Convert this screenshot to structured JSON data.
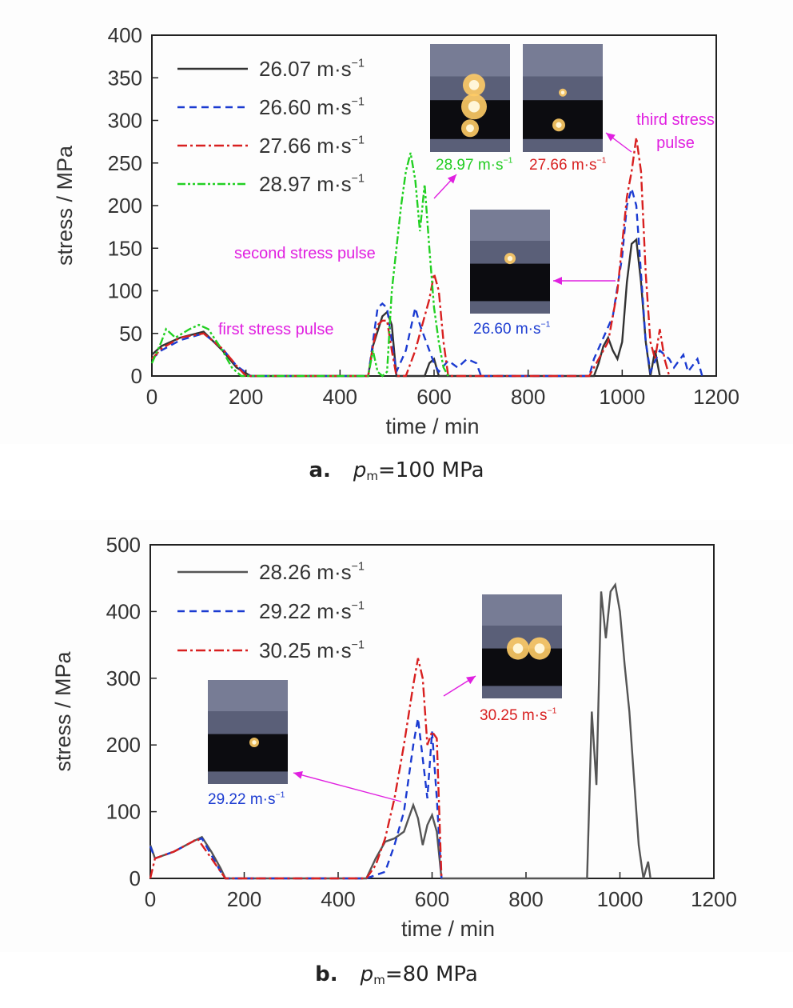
{
  "chart_data": [
    {
      "type": "line",
      "caption_label": "a.",
      "caption_symbol": "p",
      "caption_subscript": "m",
      "caption_value": "=100 MPa",
      "xlabel": "time / min",
      "ylabel": "stress / MPa",
      "xlim": [
        0,
        1200
      ],
      "ylim": [
        0,
        400
      ],
      "xticks": [
        "0",
        "200",
        "400",
        "600",
        "800",
        "1000",
        "1200"
      ],
      "yticks": [
        "0",
        "50",
        "100",
        "150",
        "200",
        "250",
        "300",
        "350",
        "400"
      ],
      "legend_position": "top-left",
      "series": [
        {
          "name": "26.07 m·s",
          "color": "#333333",
          "dash": "solid",
          "points": [
            [
              0,
              25
            ],
            [
              20,
              35
            ],
            [
              60,
              45
            ],
            [
              110,
              52
            ],
            [
              150,
              30
            ],
            [
              180,
              10
            ],
            [
              210,
              0
            ],
            [
              460,
              0
            ],
            [
              470,
              35
            ],
            [
              490,
              70
            ],
            [
              500,
              75
            ],
            [
              510,
              60
            ],
            [
              520,
              0
            ],
            [
              580,
              0
            ],
            [
              590,
              15
            ],
            [
              600,
              20
            ],
            [
              610,
              0
            ],
            [
              940,
              0
            ],
            [
              950,
              15
            ],
            [
              960,
              35
            ],
            [
              970,
              45
            ],
            [
              980,
              30
            ],
            [
              990,
              20
            ],
            [
              1000,
              40
            ],
            [
              1010,
              110
            ],
            [
              1020,
              155
            ],
            [
              1030,
              160
            ],
            [
              1040,
              110
            ],
            [
              1050,
              40
            ],
            [
              1060,
              0
            ],
            [
              1070,
              30
            ],
            [
              1080,
              0
            ]
          ]
        },
        {
          "name": "26.60 m·s",
          "color": "#1b3bd1",
          "dash": "9,6",
          "points": [
            [
              0,
              20
            ],
            [
              20,
              30
            ],
            [
              60,
              42
            ],
            [
              110,
              50
            ],
            [
              150,
              32
            ],
            [
              180,
              12
            ],
            [
              210,
              0
            ],
            [
              460,
              0
            ],
            [
              470,
              40
            ],
            [
              480,
              80
            ],
            [
              490,
              85
            ],
            [
              500,
              80
            ],
            [
              510,
              40
            ],
            [
              520,
              5
            ],
            [
              540,
              30
            ],
            [
              560,
              80
            ],
            [
              570,
              60
            ],
            [
              590,
              30
            ],
            [
              600,
              15
            ],
            [
              610,
              5
            ],
            [
              630,
              18
            ],
            [
              650,
              10
            ],
            [
              670,
              20
            ],
            [
              690,
              15
            ],
            [
              700,
              0
            ],
            [
              930,
              0
            ],
            [
              940,
              20
            ],
            [
              960,
              45
            ],
            [
              980,
              70
            ],
            [
              1000,
              140
            ],
            [
              1010,
              200
            ],
            [
              1020,
              220
            ],
            [
              1030,
              200
            ],
            [
              1040,
              120
            ],
            [
              1050,
              40
            ],
            [
              1060,
              5
            ],
            [
              1080,
              30
            ],
            [
              1100,
              20
            ],
            [
              1110,
              10
            ],
            [
              1130,
              25
            ],
            [
              1140,
              5
            ],
            [
              1160,
              20
            ],
            [
              1170,
              0
            ]
          ]
        },
        {
          "name": "27.66 m·s",
          "color": "#d82020",
          "dash": "12,4,3,4",
          "points": [
            [
              0,
              20
            ],
            [
              20,
              32
            ],
            [
              60,
              45
            ],
            [
              110,
              50
            ],
            [
              150,
              32
            ],
            [
              180,
              12
            ],
            [
              200,
              0
            ],
            [
              460,
              0
            ],
            [
              470,
              35
            ],
            [
              480,
              60
            ],
            [
              490,
              65
            ],
            [
              500,
              65
            ],
            [
              510,
              30
            ],
            [
              520,
              0
            ],
            [
              540,
              0
            ],
            [
              560,
              30
            ],
            [
              580,
              70
            ],
            [
              590,
              90
            ],
            [
              600,
              120
            ],
            [
              610,
              100
            ],
            [
              620,
              40
            ],
            [
              630,
              0
            ],
            [
              930,
              0
            ],
            [
              950,
              20
            ],
            [
              970,
              40
            ],
            [
              990,
              100
            ],
            [
              1010,
              210
            ],
            [
              1020,
              240
            ],
            [
              1030,
              280
            ],
            [
              1040,
              240
            ],
            [
              1050,
              120
            ],
            [
              1060,
              40
            ],
            [
              1070,
              20
            ],
            [
              1080,
              55
            ],
            [
              1090,
              20
            ],
            [
              1100,
              0
            ]
          ]
        },
        {
          "name": "28.97 m·s",
          "color": "#22d022",
          "dash": "10,3,3,3,3,3",
          "points": [
            [
              0,
              15
            ],
            [
              20,
              40
            ],
            [
              30,
              55
            ],
            [
              50,
              45
            ],
            [
              80,
              55
            ],
            [
              100,
              60
            ],
            [
              120,
              55
            ],
            [
              150,
              30
            ],
            [
              170,
              10
            ],
            [
              190,
              0
            ],
            [
              460,
              0
            ],
            [
              470,
              30
            ],
            [
              480,
              5
            ],
            [
              490,
              0
            ],
            [
              500,
              5
            ],
            [
              510,
              100
            ],
            [
              530,
              200
            ],
            [
              540,
              240
            ],
            [
              550,
              262
            ],
            [
              560,
              230
            ],
            [
              570,
              170
            ],
            [
              580,
              225
            ],
            [
              590,
              150
            ],
            [
              600,
              80
            ],
            [
              610,
              40
            ],
            [
              620,
              10
            ],
            [
              630,
              0
            ]
          ]
        }
      ],
      "annotations": [
        "first stress pulse",
        "second stress pulse",
        "third stress",
        "pulse"
      ],
      "annotation_color": "#e020e0",
      "inset_captions": [
        "28.97 m·s",
        "27.66 m·s",
        "26.60 m·s"
      ],
      "unit_exponent": "−1"
    },
    {
      "type": "line",
      "caption_label": "b.",
      "caption_symbol": "p",
      "caption_subscript": "m",
      "caption_value": "=80 MPa",
      "xlabel": "time / min",
      "ylabel": "stress / MPa",
      "xlim": [
        0,
        1200
      ],
      "ylim": [
        0,
        500
      ],
      "xticks": [
        "0",
        "200",
        "400",
        "600",
        "800",
        "1000",
        "1200"
      ],
      "yticks": [
        "0",
        "100",
        "200",
        "300",
        "400",
        "500"
      ],
      "legend_position": "top-left",
      "series": [
        {
          "name": "28.26 m·s",
          "color": "#555555",
          "dash": "solid",
          "points": [
            [
              0,
              50
            ],
            [
              10,
              30
            ],
            [
              50,
              40
            ],
            [
              90,
              55
            ],
            [
              110,
              62
            ],
            [
              130,
              40
            ],
            [
              150,
              15
            ],
            [
              160,
              0
            ],
            [
              460,
              0
            ],
            [
              480,
              30
            ],
            [
              500,
              55
            ],
            [
              520,
              60
            ],
            [
              540,
              70
            ],
            [
              560,
              110
            ],
            [
              570,
              90
            ],
            [
              580,
              50
            ],
            [
              590,
              80
            ],
            [
              600,
              95
            ],
            [
              610,
              70
            ],
            [
              620,
              0
            ],
            [
              930,
              0
            ],
            [
              940,
              250
            ],
            [
              950,
              140
            ],
            [
              960,
              430
            ],
            [
              970,
              360
            ],
            [
              980,
              430
            ],
            [
              990,
              440
            ],
            [
              1000,
              400
            ],
            [
              1010,
              320
            ],
            [
              1020,
              250
            ],
            [
              1030,
              150
            ],
            [
              1040,
              50
            ],
            [
              1050,
              0
            ],
            [
              1060,
              25
            ],
            [
              1065,
              0
            ]
          ]
        },
        {
          "name": "29.22 m·s",
          "color": "#1b3bd1",
          "dash": "9,6",
          "points": [
            [
              0,
              48
            ],
            [
              10,
              30
            ],
            [
              50,
              40
            ],
            [
              90,
              55
            ],
            [
              110,
              60
            ],
            [
              130,
              35
            ],
            [
              150,
              10
            ],
            [
              160,
              0
            ],
            [
              460,
              0
            ],
            [
              500,
              10
            ],
            [
              520,
              50
            ],
            [
              540,
              100
            ],
            [
              560,
              200
            ],
            [
              570,
              240
            ],
            [
              580,
              180
            ],
            [
              590,
              120
            ],
            [
              600,
              220
            ],
            [
              610,
              120
            ],
            [
              620,
              0
            ]
          ]
        },
        {
          "name": "30.25 m·s",
          "color": "#d82020",
          "dash": "12,4,3,4",
          "points": [
            [
              0,
              0
            ],
            [
              10,
              30
            ],
            [
              50,
              40
            ],
            [
              90,
              55
            ],
            [
              100,
              60
            ],
            [
              120,
              40
            ],
            [
              150,
              10
            ],
            [
              160,
              0
            ],
            [
              460,
              0
            ],
            [
              480,
              20
            ],
            [
              500,
              60
            ],
            [
              520,
              120
            ],
            [
              540,
              200
            ],
            [
              560,
              290
            ],
            [
              570,
              330
            ],
            [
              580,
              300
            ],
            [
              590,
              200
            ],
            [
              600,
              220
            ],
            [
              610,
              210
            ],
            [
              620,
              0
            ]
          ]
        }
      ],
      "inset_captions": [
        "29.22 m·s",
        "30.25 m·s"
      ],
      "unit_exponent": "−1"
    }
  ]
}
